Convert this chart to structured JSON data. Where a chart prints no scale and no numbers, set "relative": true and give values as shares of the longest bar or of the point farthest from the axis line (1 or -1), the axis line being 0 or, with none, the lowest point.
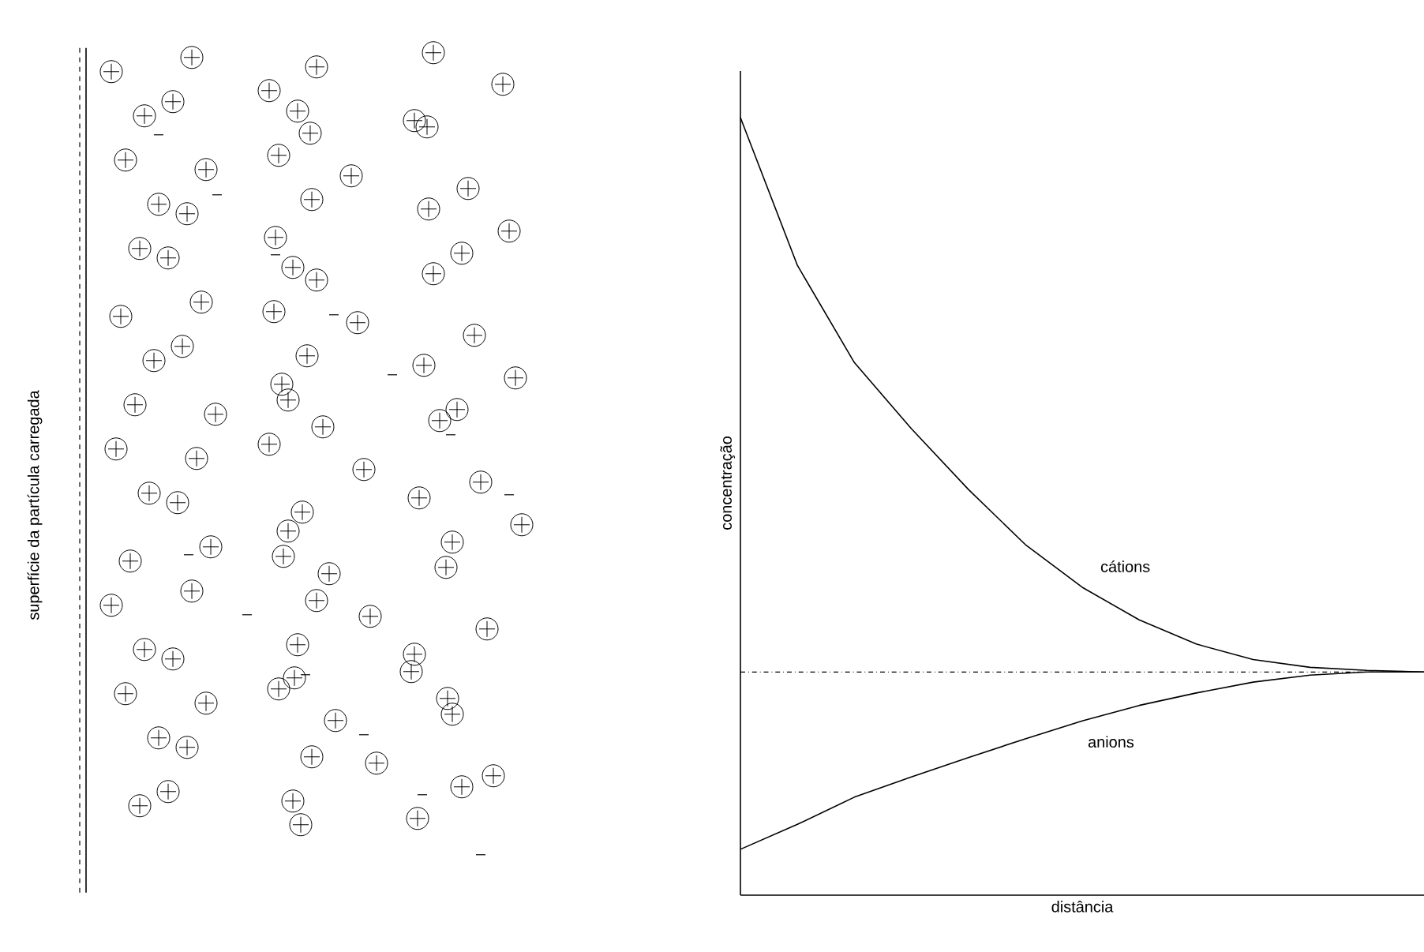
{
  "chart_data": {
    "type": "line",
    "relative": true,
    "xlabel": "distância",
    "ylabel": "concentração",
    "categories": [
      null,
      null,
      null,
      null,
      null,
      null,
      null,
      null,
      null,
      null,
      null,
      null,
      null
    ],
    "series": [
      {
        "name": "cátions",
        "color": "#000000",
        "values": [
          1,
          0.81,
          0.685,
          0.6,
          0.522,
          0.451,
          0.396,
          0.354,
          0.323,
          0.303,
          0.293,
          0.289,
          0.287
        ]
      },
      {
        "name": "anions",
        "color": "#000000",
        "values": [
          0.059,
          0.091,
          0.126,
          0.152,
          0.177,
          0.201,
          0.224,
          0.244,
          0.26,
          0.274,
          0.283,
          0.287,
          0.287
        ]
      }
    ],
    "ref_lines": [
      {
        "axis": "y",
        "value": 0.287,
        "line_style": "dashed",
        "color": "#000000"
      }
    ],
    "annotations": [
      "superfície da partícula carregada"
    ]
  }
}
